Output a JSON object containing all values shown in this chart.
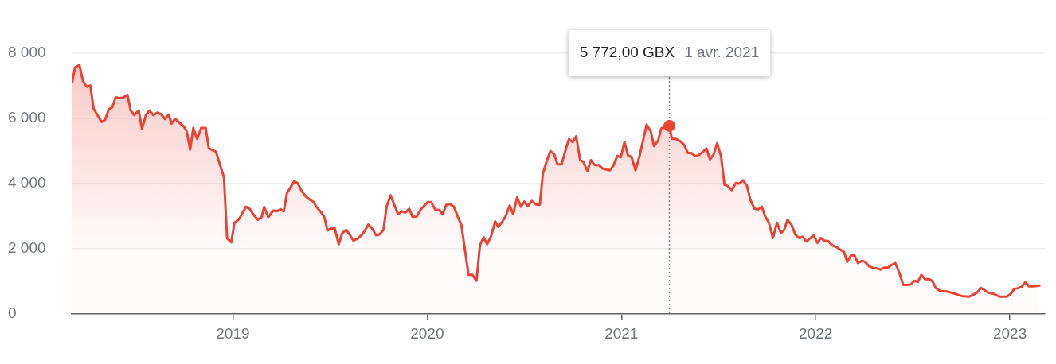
{
  "chart_data": {
    "type": "area",
    "xlim": [
      2018.17,
      2023.18
    ],
    "xticks": [
      2019,
      2020,
      2021,
      2022,
      2023
    ],
    "ylim": [
      0,
      8000
    ],
    "yticks": [
      0,
      {
        "value": 2000,
        "label": "2 000"
      },
      {
        "value": 4000,
        "label": "4 000"
      },
      {
        "value": 6000,
        "label": "6 000"
      },
      {
        "value": 8000,
        "label": "8 000"
      }
    ],
    "grid": "y",
    "legend": false,
    "ref_lines": [
      {
        "axis": "x",
        "value": 2021.247,
        "line_style": "dotted",
        "color": "#80868b"
      }
    ],
    "annotations": [
      "5 772,00 GBX",
      "1 avr. 2021"
    ],
    "series": [
      {
        "color": "#ea4335",
        "marker": "none",
        "x": [
          2018.173,
          2018.187,
          2018.21,
          2018.228,
          2018.248,
          2018.266,
          2018.283,
          2018.324,
          2018.342,
          2018.361,
          2018.379,
          2018.396,
          2018.417,
          2018.437,
          2018.457,
          2018.474,
          2018.492,
          2018.515,
          2018.532,
          2018.552,
          2018.57,
          2018.591,
          2018.611,
          2018.632,
          2018.65,
          2018.669,
          2018.684,
          2018.703,
          2018.728,
          2018.748,
          2018.762,
          2018.78,
          2018.796,
          2018.816,
          2018.837,
          2018.86,
          2018.876,
          2018.913,
          2018.933,
          2018.954,
          2018.97,
          2018.992,
          2019.008,
          2019.029,
          2019.045,
          2019.067,
          2019.086,
          2019.108,
          2019.129,
          2019.148,
          2019.161,
          2019.182,
          2019.207,
          2019.227,
          2019.245,
          2019.262,
          2019.278,
          2019.316,
          2019.334,
          2019.357,
          2019.378,
          2019.398,
          2019.415,
          2019.432,
          2019.453,
          2019.471,
          2019.487,
          2019.505,
          2019.524,
          2019.545,
          2019.563,
          2019.583,
          2019.601,
          2019.62,
          2019.645,
          2019.672,
          2019.697,
          2019.716,
          2019.738,
          2019.754,
          2019.775,
          2019.791,
          2019.812,
          2019.85,
          2019.871,
          2019.888,
          2019.908,
          2019.925,
          2019.946,
          2019.966,
          2020.003,
          2020.021,
          2020.042,
          2020.062,
          2020.08,
          2020.099,
          2020.117,
          2020.138,
          2020.158,
          2020.176,
          2020.213,
          2020.233,
          2020.254,
          2020.272,
          2020.291,
          2020.309,
          2020.329,
          2020.35,
          2020.366,
          2020.388,
          2020.405,
          2020.425,
          2020.443,
          2020.463,
          2020.483,
          2020.5,
          2020.518,
          2020.539,
          2020.559,
          2020.58,
          2020.596,
          2020.617,
          2020.635,
          2020.654,
          2020.671,
          2020.692,
          2020.713,
          2020.73,
          2020.749,
          2020.767,
          2020.788,
          2020.804,
          2020.825,
          2020.843,
          2020.863,
          2020.884,
          2020.901,
          2020.922,
          2020.941,
          2020.959,
          2020.979,
          2020.997,
          2021.016,
          2021.034,
          2021.052,
          2021.073,
          2021.093,
          2021.11,
          2021.13,
          2021.151,
          2021.168,
          2021.189,
          2021.205,
          2021.223,
          2021.247,
          2021.26,
          2021.281,
          2021.301,
          2021.322,
          2021.342,
          2021.36,
          2021.381,
          2021.4,
          2021.418,
          2021.438,
          2021.456,
          2021.475,
          2021.493,
          2021.513,
          2021.531,
          2021.547,
          2021.568,
          2021.589,
          2021.607,
          2021.626,
          2021.646,
          2021.664,
          2021.685,
          2021.705,
          2021.723,
          2021.739,
          2021.76,
          2021.78,
          2021.801,
          2021.821,
          2021.838,
          2021.855,
          2021.876,
          2021.894,
          2021.915,
          2021.934,
          2021.952,
          2021.972,
          2021.99,
          2022.009,
          2022.027,
          2022.044,
          2022.065,
          2022.084,
          2022.105,
          2022.125,
          2022.146,
          2022.163,
          2022.182,
          2022.2,
          2022.218,
          2022.239,
          2022.255,
          2022.276,
          2022.297,
          2022.314,
          2022.335,
          2022.352,
          2022.372,
          2022.389,
          2022.41,
          2022.43,
          2022.451,
          2022.471,
          2022.49,
          2022.508,
          2022.526,
          2022.544,
          2022.563,
          2022.584,
          2022.602,
          2022.619,
          2022.64,
          2022.677,
          2022.718,
          2022.752,
          2022.791,
          2022.81,
          2022.83,
          2022.851,
          2022.869,
          2022.889,
          2022.91,
          2022.926,
          2022.947,
          2022.985,
          2023.005,
          2023.023,
          2023.04,
          2023.06,
          2023.081,
          2023.097,
          2023.122,
          2023.152
        ],
        "values": [
          7120,
          7560,
          7640,
          7150,
          6970,
          7010,
          6300,
          5890,
          5960,
          6280,
          6340,
          6650,
          6620,
          6640,
          6720,
          6240,
          6100,
          6240,
          5670,
          6100,
          6240,
          6100,
          6180,
          6120,
          5980,
          6120,
          5840,
          5990,
          5850,
          5750,
          5610,
          5040,
          5710,
          5370,
          5710,
          5710,
          5080,
          4980,
          4590,
          4190,
          2320,
          2200,
          2800,
          2890,
          3050,
          3290,
          3230,
          3030,
          2890,
          2970,
          3280,
          2970,
          3170,
          3150,
          3210,
          3150,
          3700,
          4070,
          4010,
          3740,
          3590,
          3500,
          3440,
          3270,
          3130,
          2970,
          2560,
          2620,
          2630,
          2140,
          2480,
          2580,
          2440,
          2250,
          2320,
          2480,
          2740,
          2630,
          2410,
          2440,
          2580,
          3290,
          3640,
          3060,
          3150,
          3110,
          3230,
          2980,
          2990,
          3200,
          3430,
          3430,
          3200,
          3190,
          3060,
          3350,
          3370,
          3290,
          2980,
          2740,
          1200,
          1200,
          1020,
          2110,
          2350,
          2140,
          2380,
          2840,
          2670,
          2840,
          3010,
          3330,
          3060,
          3580,
          3290,
          3450,
          3310,
          3470,
          3360,
          3350,
          4310,
          4720,
          5000,
          4900,
          4590,
          4590,
          5040,
          5370,
          5270,
          5450,
          4720,
          4670,
          4390,
          4720,
          4570,
          4570,
          4470,
          4430,
          4410,
          4550,
          4850,
          4810,
          5280,
          4860,
          4820,
          4410,
          4840,
          5280,
          5810,
          5610,
          5150,
          5320,
          5690,
          5730,
          5772,
          5370,
          5370,
          5310,
          5200,
          4940,
          4940,
          4840,
          4880,
          4960,
          5080,
          4740,
          4900,
          5240,
          4840,
          3960,
          3930,
          3800,
          4020,
          4000,
          4100,
          3940,
          3500,
          3230,
          3210,
          3290,
          3010,
          2790,
          2330,
          2800,
          2480,
          2580,
          2890,
          2740,
          2450,
          2330,
          2370,
          2220,
          2320,
          2410,
          2180,
          2330,
          2250,
          2240,
          2110,
          2060,
          1980,
          1900,
          1600,
          1800,
          1800,
          1560,
          1630,
          1600,
          1460,
          1410,
          1400,
          1360,
          1420,
          1420,
          1500,
          1560,
          1280,
          890,
          890,
          910,
          1020,
          980,
          1200,
          1070,
          1070,
          1000,
          790,
          710,
          690,
          620,
          550,
          530,
          590,
          650,
          800,
          730,
          650,
          630,
          590,
          530,
          530,
          620,
          770,
          790,
          830,
          980,
          850,
          850,
          870
        ]
      },
      {
        "type": "scatter",
        "color": "#ea4335",
        "marker": "circle",
        "x": [
          2021.247
        ],
        "values": [
          5772
        ]
      }
    ]
  }
}
